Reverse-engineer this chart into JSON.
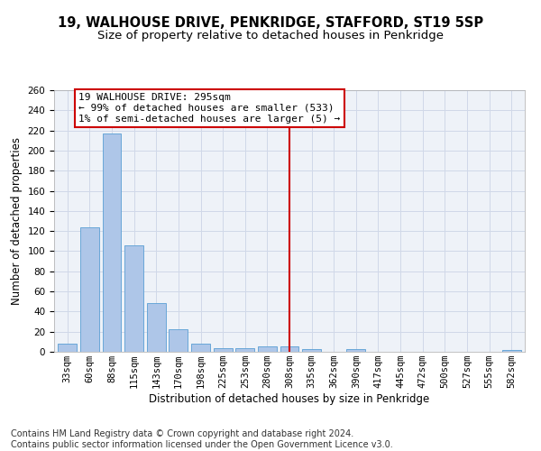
{
  "title_line1": "19, WALHOUSE DRIVE, PENKRIDGE, STAFFORD, ST19 5SP",
  "title_line2": "Size of property relative to detached houses in Penkridge",
  "xlabel": "Distribution of detached houses by size in Penkridge",
  "ylabel": "Number of detached properties",
  "bin_labels": [
    "33sqm",
    "60sqm",
    "88sqm",
    "115sqm",
    "143sqm",
    "170sqm",
    "198sqm",
    "225sqm",
    "253sqm",
    "280sqm",
    "308sqm",
    "335sqm",
    "362sqm",
    "390sqm",
    "417sqm",
    "445sqm",
    "472sqm",
    "500sqm",
    "527sqm",
    "555sqm",
    "582sqm"
  ],
  "bar_heights": [
    8,
    124,
    217,
    106,
    48,
    22,
    8,
    4,
    4,
    5,
    5,
    3,
    0,
    3,
    0,
    0,
    0,
    0,
    0,
    0,
    2
  ],
  "bar_color": "#aec6e8",
  "bar_edge_color": "#5a9fd4",
  "vline_x_index": 10,
  "vline_color": "#cc0000",
  "annotation_text": "19 WALHOUSE DRIVE: 295sqm\n← 99% of detached houses are smaller (533)\n1% of semi-detached houses are larger (5) →",
  "annotation_box_edge_color": "#cc0000",
  "ylim": [
    0,
    260
  ],
  "yticks": [
    0,
    20,
    40,
    60,
    80,
    100,
    120,
    140,
    160,
    180,
    200,
    220,
    240,
    260
  ],
  "grid_color": "#d0d8e8",
  "background_color": "#eef2f8",
  "footer_line1": "Contains HM Land Registry data © Crown copyright and database right 2024.",
  "footer_line2": "Contains public sector information licensed under the Open Government Licence v3.0.",
  "title1_fontsize": 10.5,
  "title2_fontsize": 9.5,
  "axis_label_fontsize": 8.5,
  "tick_fontsize": 7.5,
  "annotation_fontsize": 8,
  "footer_fontsize": 7
}
